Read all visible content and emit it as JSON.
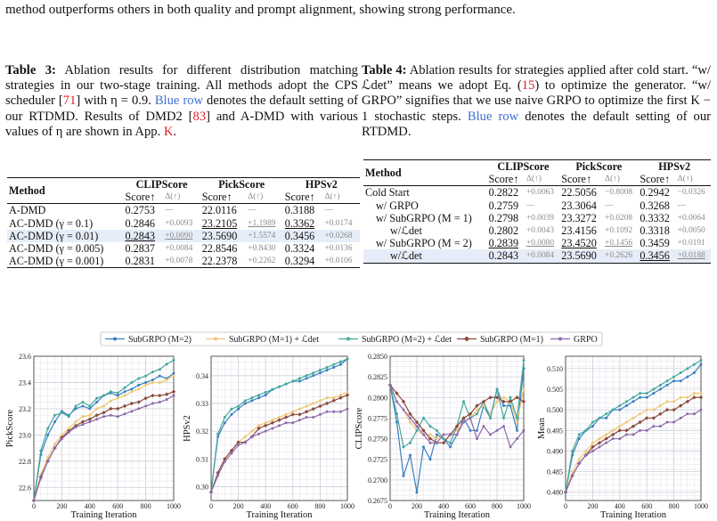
{
  "intro_text": "method outperforms others in both quality and prompt alignment, showing strong performance.",
  "table3": {
    "label": "Table 3:",
    "caption_a": " Ablation results for different distribution matching strategies in our two-stage training. All methods adopt the CPS scheduler [",
    "ref1": "71",
    "caption_b": "] with η = 0.9. ",
    "blue_row": "Blue row",
    "caption_c": " denotes the default setting of our RTDMD. Results of DMD2 [",
    "ref2": "83",
    "caption_d": "] and A-DMD with various values of η are shown in App. ",
    "app": "K",
    "caption_e": ".",
    "col_method": "Method",
    "groups": [
      "CLIPScore",
      "PickScore",
      "HPSv2"
    ],
    "metric": "Score↑",
    "delta": "Δ(↑)",
    "rows": [
      {
        "method": "A-DMD",
        "c": "0.2753",
        "cd": "—",
        "p": "22.0116",
        "pd": "—",
        "h": "0.3188",
        "hd": "—"
      },
      {
        "method": "AC-DMD (γ = 0.1)",
        "c": "0.2846",
        "cd": "+0.0093",
        "p": "23.2105",
        "pd": "+1.1989",
        "h": "0.3362",
        "hd": "+0.0174"
      },
      {
        "method": "AC-DMD (γ = 0.01)",
        "c": "0.2843",
        "cd": "+0.0090",
        "p": "23.5690",
        "pd": "+1.5574",
        "h": "0.3456",
        "hd": "+0.0268"
      },
      {
        "method": "AC-DMD (γ = 0.005)",
        "c": "0.2837",
        "cd": "+0.0084",
        "p": "22.8546",
        "pd": "+0.8430",
        "h": "0.3324",
        "hd": "+0.0136"
      },
      {
        "method": "AC-DMD (γ = 0.001)",
        "c": "0.2831",
        "cd": "+0.0078",
        "p": "22.2378",
        "pd": "+0.2262",
        "h": "0.3294",
        "hd": "+0.0106"
      }
    ]
  },
  "table4": {
    "label": "Table 4:",
    "caption_a": " Ablation results for strategies applied after cold start. “w/ ℒdet” means we adopt Eq. (",
    "ref1": "15",
    "caption_b": ") to optimize the generator. “w/ GRPO” signifies that we use naive GRPO to optimize the first K − 1 stochastic steps. ",
    "blue_row": "Blue row",
    "caption_c": " denotes the default setting of our RTDMD.",
    "col_method": "Method",
    "groups": [
      "CLIPScore",
      "PickScore",
      "HPSv2"
    ],
    "metric": "Score↑",
    "delta": "Δ(↑)",
    "rows": [
      {
        "method": "Cold Start",
        "c": "0.2822",
        "cd": "+0.0063",
        "p": "22.5056",
        "pd": "−0.8008",
        "h": "0.2942",
        "hd": "−0.0326"
      },
      {
        "method": "w/ GRPO",
        "c": "0.2759",
        "cd": "—",
        "p": "23.3064",
        "pd": "—",
        "h": "0.3268",
        "hd": "—"
      },
      {
        "method": "w/ SubGRPO (M = 1)",
        "c": "0.2798",
        "cd": "+0.0039",
        "p": "23.3272",
        "pd": "+0.0208",
        "h": "0.3332",
        "hd": "+0.0064"
      },
      {
        "method": "w/ℒdet",
        "c": "0.2802",
        "cd": "+0.0043",
        "p": "23.4156",
        "pd": "+0.1092",
        "h": "0.3318",
        "hd": "+0.0050"
      },
      {
        "method": "w/ SubGRPO (M = 2)",
        "c": "0.2839",
        "cd": "+0.0080",
        "p": "23.4520",
        "pd": "+0.1456",
        "h": "0.3459",
        "hd": "+0.0191"
      },
      {
        "method": "w/ℒdet",
        "c": "0.2843",
        "cd": "+0.0084",
        "p": "23.5690",
        "pd": "+0.2626",
        "h": "0.3456",
        "hd": "+0.0188"
      }
    ]
  },
  "colors": {
    "blue": "#3a7fbf",
    "yellow": "#f0c674",
    "teal": "#44a89c",
    "brown": "#8b4a3c",
    "purple": "#8e6aac",
    "highlight": "#e6edf8"
  },
  "chart_data": [
    {
      "type": "line",
      "ylabel": "PickScore",
      "xlabel": "Training Iteration",
      "xlim": [
        0,
        1000
      ],
      "ylim": [
        22.5,
        23.6
      ],
      "xticks": [
        "0",
        "200",
        "400",
        "600",
        "800",
        "1000"
      ],
      "yticks": [
        "22.6",
        "22.8",
        "23.0",
        "23.2",
        "23.4",
        "23.6"
      ],
      "x": [
        0,
        50,
        100,
        150,
        200,
        250,
        300,
        350,
        400,
        450,
        500,
        550,
        600,
        650,
        700,
        750,
        800,
        850,
        900,
        950,
        1000
      ],
      "series": [
        {
          "name": "SubGRPO (M=2)",
          "values": [
            22.5,
            22.85,
            23.0,
            23.1,
            23.18,
            23.15,
            23.2,
            23.22,
            23.2,
            23.25,
            23.3,
            23.32,
            23.3,
            23.33,
            23.35,
            23.38,
            23.4,
            23.42,
            23.45,
            23.43,
            23.47
          ]
        },
        {
          "name": "SubGRPO (M=1) + ℒdet",
          "values": [
            22.5,
            22.7,
            22.83,
            22.93,
            23.0,
            23.05,
            23.1,
            23.14,
            23.15,
            23.2,
            23.22,
            23.26,
            23.28,
            23.3,
            23.33,
            23.35,
            23.38,
            23.4,
            23.4,
            23.42,
            23.45
          ]
        },
        {
          "name": "SubGRPO (M=2) + ℒdet",
          "values": [
            22.5,
            22.88,
            23.05,
            23.15,
            23.17,
            23.14,
            23.22,
            23.25,
            23.22,
            23.28,
            23.3,
            23.33,
            23.32,
            23.36,
            23.4,
            23.43,
            23.45,
            23.48,
            23.5,
            23.54,
            23.57
          ]
        },
        {
          "name": "SubGRPO (M=1)",
          "values": [
            22.5,
            22.68,
            22.8,
            22.9,
            22.98,
            23.03,
            23.07,
            23.1,
            23.12,
            23.15,
            23.17,
            23.2,
            23.2,
            23.22,
            23.24,
            23.25,
            23.28,
            23.3,
            23.3,
            23.31,
            23.33
          ]
        },
        {
          "name": "GRPO",
          "values": [
            22.5,
            22.67,
            22.8,
            22.9,
            22.97,
            23.02,
            23.06,
            23.08,
            23.1,
            23.12,
            23.14,
            23.15,
            23.14,
            23.16,
            23.18,
            23.2,
            23.22,
            23.24,
            23.25,
            23.27,
            23.3
          ]
        }
      ]
    },
    {
      "type": "line",
      "ylabel": "HPSv2",
      "xlabel": "Training Iteration",
      "xlim": [
        0,
        1000
      ],
      "ylim": [
        0.295,
        0.347
      ],
      "xticks": [
        "0",
        "200",
        "400",
        "600",
        "800",
        "1000"
      ],
      "yticks": [
        "0.30",
        "0.31",
        "0.32",
        "0.33",
        "0.34"
      ],
      "x": [
        0,
        50,
        100,
        150,
        200,
        250,
        300,
        350,
        400,
        450,
        500,
        550,
        600,
        650,
        700,
        750,
        800,
        850,
        900,
        950,
        1000
      ],
      "series": [
        {
          "name": "SubGRPO (M=2)",
          "values": [
            0.298,
            0.318,
            0.323,
            0.326,
            0.328,
            0.33,
            0.331,
            0.332,
            0.333,
            0.335,
            0.336,
            0.337,
            0.338,
            0.338,
            0.339,
            0.34,
            0.341,
            0.342,
            0.343,
            0.344,
            0.346
          ]
        },
        {
          "name": "SubGRPO (M=1) + ℒdet",
          "values": [
            0.298,
            0.305,
            0.31,
            0.313,
            0.316,
            0.318,
            0.32,
            0.322,
            0.323,
            0.324,
            0.325,
            0.326,
            0.327,
            0.328,
            0.329,
            0.33,
            0.331,
            0.332,
            0.332,
            0.333,
            0.334
          ]
        },
        {
          "name": "SubGRPO (M=2) + ℒdet",
          "values": [
            0.298,
            0.319,
            0.325,
            0.328,
            0.329,
            0.331,
            0.332,
            0.333,
            0.334,
            0.335,
            0.336,
            0.337,
            0.338,
            0.339,
            0.34,
            0.341,
            0.342,
            0.343,
            0.344,
            0.345,
            0.346
          ]
        },
        {
          "name": "SubGRPO (M=1)",
          "values": [
            0.298,
            0.305,
            0.31,
            0.313,
            0.316,
            0.316,
            0.318,
            0.321,
            0.322,
            0.323,
            0.324,
            0.325,
            0.326,
            0.326,
            0.327,
            0.328,
            0.329,
            0.33,
            0.331,
            0.332,
            0.333
          ]
        },
        {
          "name": "GRPO",
          "values": [
            0.298,
            0.304,
            0.309,
            0.312,
            0.315,
            0.316,
            0.318,
            0.319,
            0.32,
            0.321,
            0.322,
            0.323,
            0.323,
            0.324,
            0.325,
            0.325,
            0.326,
            0.327,
            0.327,
            0.327,
            0.328
          ]
        }
      ]
    },
    {
      "type": "line",
      "ylabel": "CLIPScore",
      "xlabel": "Training Iteration",
      "xlim": [
        0,
        1000
      ],
      "ylim": [
        0.2675,
        0.285
      ],
      "xticks": [
        "0",
        "200",
        "400",
        "600",
        "800",
        "1000"
      ],
      "yticks": [
        "0.2675",
        "0.2700",
        "0.2725",
        "0.2750",
        "0.2775",
        "0.2800",
        "0.2825",
        "0.2850"
      ],
      "x": [
        0,
        50,
        100,
        150,
        200,
        250,
        300,
        350,
        400,
        450,
        500,
        550,
        600,
        650,
        700,
        750,
        800,
        850,
        900,
        950,
        1000
      ],
      "series": [
        {
          "name": "SubGRPO (M=2)",
          "values": [
            0.2815,
            0.277,
            0.2705,
            0.273,
            0.2685,
            0.274,
            0.2725,
            0.2755,
            0.275,
            0.274,
            0.2755,
            0.2775,
            0.276,
            0.276,
            0.279,
            0.2775,
            0.281,
            0.279,
            0.279,
            0.276,
            0.2835
          ]
        },
        {
          "name": "SubGRPO (M=1) + ℒdet",
          "values": [
            0.2815,
            0.2795,
            0.2785,
            0.277,
            0.276,
            0.2755,
            0.2755,
            0.275,
            0.2755,
            0.2755,
            0.276,
            0.277,
            0.2775,
            0.2785,
            0.279,
            0.278,
            0.2795,
            0.28,
            0.2795,
            0.277,
            0.281
          ]
        },
        {
          "name": "SubGRPO (M=2) + ℒdet",
          "values": [
            0.2815,
            0.278,
            0.274,
            0.2745,
            0.276,
            0.2775,
            0.2765,
            0.276,
            0.275,
            0.2745,
            0.2765,
            0.2795,
            0.2775,
            0.278,
            0.2795,
            0.2775,
            0.281,
            0.2775,
            0.28,
            0.2775,
            0.2845
          ]
        },
        {
          "name": "SubGRPO (M=1)",
          "values": [
            0.2815,
            0.2805,
            0.2795,
            0.278,
            0.277,
            0.276,
            0.275,
            0.2745,
            0.2745,
            0.2755,
            0.2765,
            0.2775,
            0.278,
            0.279,
            0.2795,
            0.28,
            0.28,
            0.2795,
            0.2795,
            0.28,
            0.2795
          ]
        },
        {
          "name": "GRPO",
          "values": [
            0.2815,
            0.2795,
            0.2785,
            0.2775,
            0.2765,
            0.2755,
            0.2745,
            0.2745,
            0.2755,
            0.2755,
            0.2755,
            0.277,
            0.2775,
            0.275,
            0.2765,
            0.2755,
            0.276,
            0.2765,
            0.274,
            0.275,
            0.276
          ]
        }
      ]
    },
    {
      "type": "line",
      "ylabel": "Mean",
      "xlabel": "Training Iteration",
      "xlim": [
        0,
        1000
      ],
      "ylim": [
        0.478,
        0.513
      ],
      "xticks": [
        "0",
        "200",
        "400",
        "600",
        "800",
        "1000"
      ],
      "yticks": [
        "0.480",
        "0.485",
        "0.490",
        "0.495",
        "0.500",
        "0.505",
        "0.510"
      ],
      "x": [
        0,
        50,
        100,
        150,
        200,
        250,
        300,
        350,
        400,
        450,
        500,
        550,
        600,
        650,
        700,
        750,
        800,
        850,
        900,
        950,
        1000
      ],
      "series": [
        {
          "name": "SubGRPO (M=2)",
          "values": [
            0.48,
            0.489,
            0.493,
            0.495,
            0.496,
            0.498,
            0.498,
            0.5,
            0.5,
            0.501,
            0.502,
            0.503,
            0.503,
            0.504,
            0.505,
            0.506,
            0.507,
            0.507,
            0.508,
            0.509,
            0.511
          ]
        },
        {
          "name": "SubGRPO (M=1) + ℒdet",
          "values": [
            0.48,
            0.485,
            0.488,
            0.49,
            0.492,
            0.493,
            0.494,
            0.495,
            0.496,
            0.497,
            0.498,
            0.499,
            0.5,
            0.5,
            0.501,
            0.502,
            0.502,
            0.503,
            0.503,
            0.504,
            0.504
          ]
        },
        {
          "name": "SubGRPO (M=2) + ℒdet",
          "values": [
            0.48,
            0.49,
            0.494,
            0.495,
            0.497,
            0.498,
            0.499,
            0.5,
            0.501,
            0.502,
            0.503,
            0.504,
            0.504,
            0.505,
            0.506,
            0.507,
            0.508,
            0.509,
            0.51,
            0.511,
            0.512
          ]
        },
        {
          "name": "SubGRPO (M=1)",
          "values": [
            0.48,
            0.484,
            0.487,
            0.489,
            0.491,
            0.492,
            0.493,
            0.494,
            0.495,
            0.495,
            0.496,
            0.497,
            0.498,
            0.498,
            0.499,
            0.5,
            0.5,
            0.501,
            0.502,
            0.503,
            0.503
          ]
        },
        {
          "name": "GRPO",
          "values": [
            0.48,
            0.484,
            0.487,
            0.489,
            0.49,
            0.491,
            0.492,
            0.493,
            0.493,
            0.494,
            0.494,
            0.495,
            0.495,
            0.496,
            0.496,
            0.497,
            0.497,
            0.498,
            0.499,
            0.499,
            0.5
          ]
        }
      ]
    }
  ]
}
